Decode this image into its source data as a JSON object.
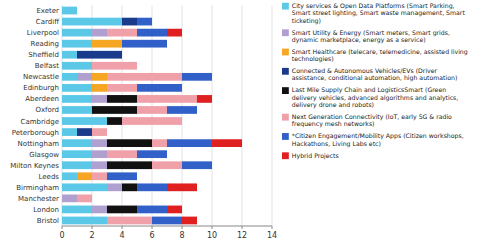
{
  "chart_data": {
    "type": "bar",
    "orientation": "horizontal",
    "stacked": true,
    "grid": true,
    "legend": "right",
    "categories": [
      "Exeter",
      "Cardiff",
      "Liverpool",
      "Reading",
      "Sheffield",
      "Belfast",
      "Newcastle",
      "Edinburgh",
      "Aberdeen",
      "Oxford",
      "Cambridge",
      "Peterborough",
      "Nottingham",
      "Glasgow",
      "Milton Keynes",
      "Leeds",
      "Birmingham",
      "Manchester",
      "London",
      "Bristol"
    ],
    "xlim": [
      0,
      14
    ],
    "xticks": [
      0,
      2,
      4,
      6,
      8,
      10,
      12,
      14
    ],
    "series": [
      {
        "name": "City services & Open Data Platforms (Smart Parking,\nSmart street lighting, Smart waste management, Smart\nticketing)",
        "color": "#5BC8E8",
        "values": [
          1,
          4,
          2,
          2,
          1,
          2,
          1,
          2,
          2,
          2,
          3,
          1,
          2,
          2,
          2,
          1,
          3,
          0,
          2,
          3
        ]
      },
      {
        "name": "Smart Utility & Energy (Smart meters, Smart grids,\ndynamic marketplace, energy as a service)",
        "color": "#B0A0D0",
        "values": [
          0,
          0,
          1,
          0,
          0,
          0,
          1,
          0,
          1,
          0,
          0,
          0,
          1,
          1,
          1,
          0,
          1,
          1,
          1,
          0
        ]
      },
      {
        "name": "Smart Healthcare (telecare, telemedicine, assisted living\ntechnologies)",
        "color": "#F5A623",
        "values": [
          0,
          0,
          0,
          2,
          0,
          0,
          1,
          1,
          0,
          0,
          0,
          0,
          0,
          0,
          0,
          1,
          0,
          0,
          0,
          0
        ]
      },
      {
        "name": "Connected & Autonomous Vehicles/EVs  (Driver\nassistance, conditional automation, high automation)",
        "color": "#1A3A8B",
        "values": [
          0,
          1,
          0,
          0,
          3,
          0,
          0,
          0,
          0,
          0,
          0,
          1,
          0,
          0,
          0,
          0,
          0,
          0,
          0,
          0
        ]
      },
      {
        "name": "Last Mile Supply Chain and LogisticsSmart  (Green\ndelivery vehicles, advanced algorithms and analytics,\ndelivery drone and robots)",
        "color": "#111111",
        "values": [
          0,
          0,
          0,
          0,
          0,
          0,
          0,
          0,
          2,
          3,
          1,
          0,
          3,
          0,
          3,
          0,
          1,
          0,
          2,
          0
        ]
      },
      {
        "name": "Next Generation Connectivity (IoT, early 5G & radio\nfrequency mesh networks)",
        "color": "#F0A0A8",
        "values": [
          0,
          0,
          2,
          0,
          0,
          3,
          5,
          2,
          4,
          2,
          4,
          1,
          1,
          2,
          2,
          1,
          0,
          1,
          0,
          3
        ]
      },
      {
        "name": "*Citizen Engagement/Mobility Apps (Citizen workshops,\nHackathons, Living Labs etc)",
        "color": "#3060C8",
        "values": [
          0,
          1,
          2,
          3,
          0,
          0,
          2,
          3,
          0,
          2,
          0,
          0,
          3,
          2,
          2,
          2,
          2,
          0,
          2,
          2
        ]
      },
      {
        "name": "Hybrid Projects",
        "color": "#E02020",
        "values": [
          0,
          0,
          1,
          0,
          0,
          0,
          0,
          0,
          1,
          0,
          0,
          0,
          2,
          0,
          0,
          0,
          2,
          0,
          1,
          1
        ]
      }
    ]
  }
}
